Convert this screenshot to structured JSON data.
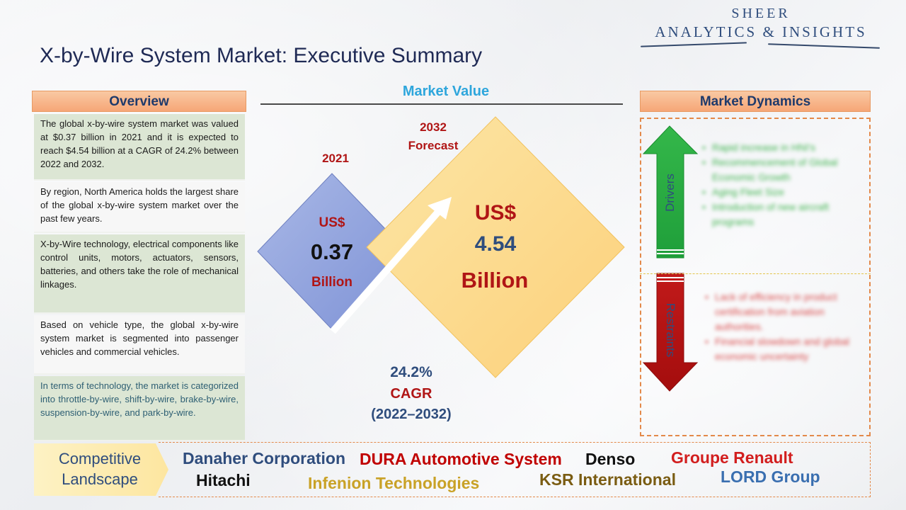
{
  "title": "X-by-Wire System Market: Executive Summary",
  "logo": {
    "line1": "SHEER",
    "line2": "ANALYTICS & INSIGHTS"
  },
  "overview": {
    "heading": "Overview",
    "paragraphs": [
      "The global x-by-wire system market was valued at $0.37 billion in 2021 and it is expected to reach $4.54 billion at a CAGR of 24.2% between 2022 and 2032.",
      "By region, North America holds the largest share of the global x-by-wire system market over the past few years.",
      "X-by-Wire technology, electrical components like control units, motors, actuators, sensors, batteries, and others take the role of mechanical linkages.",
      "Based on vehicle type, the global x-by-wire system market is segmented into passenger vehicles and commercial vehicles.",
      "In terms of technology, the market is categorized into throttle-by-wire, shift-by-wire, brake-by-wire, suspension-by-wire, and park-by-wire."
    ]
  },
  "market_value": {
    "heading": "Market Value",
    "left": {
      "year": "2021",
      "currency": "US$",
      "value": "0.37",
      "unit": "Billion"
    },
    "right": {
      "year": "2032",
      "year_note": "Forecast",
      "currency": "US$",
      "value": "4.54",
      "unit": "Billion"
    },
    "cagr": {
      "value": "24.2%",
      "label": "CAGR",
      "period": "(2022–2032)"
    }
  },
  "dynamics": {
    "heading": "Market Dynamics",
    "drivers_label": "Drivers",
    "restraints_label": "Restraints",
    "drivers": [
      "Rapid increase in HNI's",
      "Recommencement of Global Economic Growth",
      "Aging Fleet Size",
      "Introduction of new aircraft programs"
    ],
    "restraints": [
      "Lack of efficiency in product certification from aviation authorities.",
      "Financial slowdown and global economic uncertainty"
    ],
    "colors": {
      "drivers": "#3fb34f",
      "restraints": "#c00000",
      "text_drivers": "#3fb34f",
      "text_restraints": "#d84b4b"
    }
  },
  "competitive": {
    "label_line1": "Competitive",
    "label_line2": "Landscape",
    "companies": [
      {
        "name": "Danaher Corporation",
        "color": "#2f4d7d"
      },
      {
        "name": "DURA Automotive System",
        "color": "#c00000"
      },
      {
        "name": "Denso",
        "color": "#111111"
      },
      {
        "name": "Groupe Renault",
        "color": "#d21e1e"
      },
      {
        "name": "Hitachi",
        "color": "#111111"
      },
      {
        "name": "Infenion Technologies",
        "color": "#c9a227"
      },
      {
        "name": "KSR International",
        "color": "#7a5c12"
      },
      {
        "name": "LORD Group",
        "color": "#3a6fb0"
      }
    ]
  },
  "colors": {
    "accent_blue": "#2ea6dc",
    "header_orange": "#f6a677",
    "dark_red": "#b01515",
    "navy": "#2f4d7d"
  }
}
